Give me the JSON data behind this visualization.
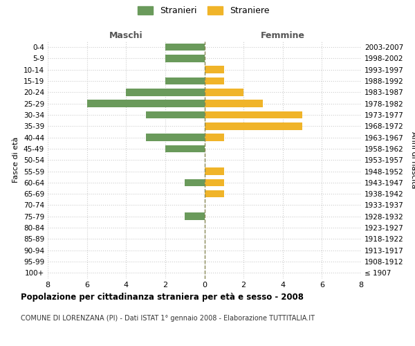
{
  "age_groups": [
    "100+",
    "95-99",
    "90-94",
    "85-89",
    "80-84",
    "75-79",
    "70-74",
    "65-69",
    "60-64",
    "55-59",
    "50-54",
    "45-49",
    "40-44",
    "35-39",
    "30-34",
    "25-29",
    "20-24",
    "15-19",
    "10-14",
    "5-9",
    "0-4"
  ],
  "birth_years": [
    "≤ 1907",
    "1908-1912",
    "1913-1917",
    "1918-1922",
    "1923-1927",
    "1928-1932",
    "1933-1937",
    "1938-1942",
    "1943-1947",
    "1948-1952",
    "1953-1957",
    "1958-1962",
    "1963-1967",
    "1968-1972",
    "1973-1977",
    "1978-1982",
    "1983-1987",
    "1988-1992",
    "1993-1997",
    "1998-2002",
    "2003-2007"
  ],
  "maschi": [
    0,
    0,
    0,
    0,
    0,
    1,
    0,
    0,
    1,
    0,
    0,
    2,
    3,
    0,
    3,
    6,
    4,
    2,
    0,
    2,
    2
  ],
  "femmine": [
    0,
    0,
    0,
    0,
    0,
    0,
    0,
    1,
    1,
    1,
    0,
    0,
    1,
    5,
    5,
    3,
    2,
    1,
    1,
    0,
    0
  ],
  "maschi_color": "#6a9a5b",
  "femmine_color": "#f0b429",
  "title": "Popolazione per cittadinanza straniera per età e sesso - 2008",
  "subtitle": "COMUNE DI LORENZANA (PI) - Dati ISTAT 1° gennaio 2008 - Elaborazione TUTTITALIA.IT",
  "legend_maschi": "Stranieri",
  "legend_femmine": "Straniere",
  "xlabel_left": "Maschi",
  "xlabel_right": "Femmine",
  "ylabel_left": "Fasce di età",
  "ylabel_right": "Anni di nascita",
  "xlim": 8,
  "background_color": "#ffffff",
  "grid_color": "#cccccc",
  "dashed_line_color": "#888855"
}
